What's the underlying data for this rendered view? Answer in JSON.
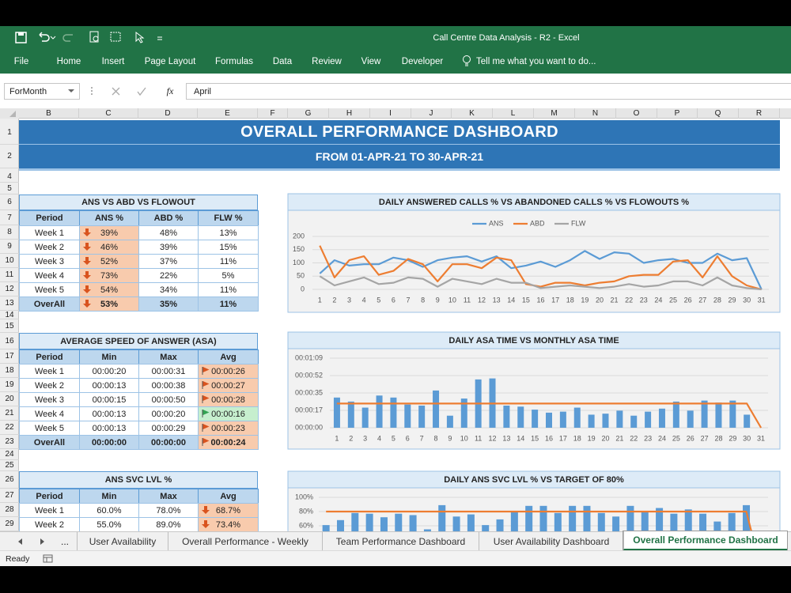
{
  "window": {
    "title": "Call Centre Data Analysis - R2 - Excel"
  },
  "menu": [
    "File",
    "Home",
    "Insert",
    "Page Layout",
    "Formulas",
    "Data",
    "Review",
    "View",
    "Developer"
  ],
  "tell_me": "Tell me what you want to do...",
  "formula_bar": {
    "name_box": "ForMonth",
    "fx": "fx",
    "value": "April"
  },
  "column_headers": [
    "B",
    "C",
    "D",
    "E",
    "F",
    "G",
    "H",
    "I",
    "J",
    "K",
    "L",
    "M",
    "N",
    "O",
    "P",
    "Q",
    "R"
  ],
  "row_headers": [
    1,
    2,
    4,
    5,
    6,
    7,
    8,
    9,
    10,
    11,
    12,
    13,
    14,
    15,
    16,
    17,
    18,
    19,
    20,
    21,
    22,
    23,
    24,
    25,
    26,
    27,
    28,
    29
  ],
  "dashboard": {
    "title": "OVERALL PERFORMANCE DASHBOARD",
    "subtitle": "FROM 01-APR-21 TO 30-APR-21"
  },
  "tables": [
    {
      "title": "ANS VS ABD VS FLOWOUT",
      "header": [
        "Period",
        "ANS %",
        "ABD %",
        "FLW %"
      ],
      "rows": [
        [
          "Week 1",
          "39%",
          "48%",
          "13%"
        ],
        [
          "Week 2",
          "46%",
          "39%",
          "15%"
        ],
        [
          "Week 3",
          "52%",
          "37%",
          "11%"
        ],
        [
          "Week 4",
          "73%",
          "22%",
          "5%"
        ],
        [
          "Week 5",
          "54%",
          "34%",
          "11%"
        ],
        [
          "OverAll",
          "53%",
          "35%",
          "11%"
        ]
      ]
    },
    {
      "title": "AVERAGE SPEED OF ANSWER (ASA)",
      "header": [
        "Period",
        "Min",
        "Max",
        "Avg"
      ],
      "rows": [
        [
          "Week 1",
          "00:00:20",
          "00:00:31",
          "00:00:26"
        ],
        [
          "Week 2",
          "00:00:13",
          "00:00:38",
          "00:00:27"
        ],
        [
          "Week 3",
          "00:00:15",
          "00:00:50",
          "00:00:28"
        ],
        [
          "Week 4",
          "00:00:13",
          "00:00:20",
          "00:00:16"
        ],
        [
          "Week 5",
          "00:00:13",
          "00:00:29",
          "00:00:23"
        ],
        [
          "OverAll",
          "00:00:00",
          "00:00:00",
          "00:00:24"
        ]
      ]
    },
    {
      "title": "ANS SVC LVL %",
      "header": [
        "Period",
        "Min",
        "Max",
        "Avg"
      ],
      "rows": [
        [
          "Week 1",
          "60.0%",
          "78.0%",
          "68.7%"
        ],
        [
          "Week 2",
          "55.0%",
          "89.0%",
          "73.4%"
        ]
      ]
    }
  ],
  "chart_data": [
    {
      "type": "line",
      "title": "DAILY ANSWERED CALLS % VS ABANDONED CALLS % VS FLOWOUTS %",
      "categories": [
        1,
        2,
        3,
        4,
        5,
        6,
        7,
        8,
        9,
        10,
        11,
        12,
        13,
        14,
        15,
        16,
        17,
        18,
        19,
        20,
        21,
        22,
        23,
        24,
        25,
        26,
        27,
        28,
        29,
        30,
        31
      ],
      "series": [
        {
          "name": "ANS",
          "color": "#5b9bd5",
          "values": [
            60,
            110,
            90,
            95,
            95,
            120,
            110,
            85,
            110,
            120,
            125,
            105,
            125,
            80,
            90,
            105,
            85,
            110,
            145,
            115,
            140,
            135,
            100,
            110,
            115,
            100,
            100,
            135,
            110,
            118,
            0
          ]
        },
        {
          "name": "ABD",
          "color": "#ed7d31",
          "values": [
            165,
            45,
            110,
            125,
            55,
            70,
            115,
            95,
            30,
            95,
            95,
            80,
            120,
            110,
            20,
            10,
            25,
            25,
            15,
            25,
            30,
            50,
            55,
            55,
            105,
            110,
            45,
            125,
            50,
            15,
            0
          ]
        },
        {
          "name": "FLW",
          "color": "#a5a5a5",
          "values": [
            50,
            15,
            30,
            45,
            20,
            25,
            45,
            40,
            10,
            40,
            30,
            20,
            40,
            25,
            25,
            5,
            10,
            15,
            10,
            5,
            10,
            20,
            10,
            15,
            30,
            30,
            15,
            45,
            15,
            5,
            0
          ]
        }
      ],
      "ylim": [
        0,
        200
      ],
      "yticks": [
        0,
        50,
        100,
        150,
        200
      ],
      "grid": true,
      "legend": "top"
    },
    {
      "type": "bar",
      "title": "DAILY ASA TIME VS MONTHLY ASA TIME",
      "categories": [
        1,
        2,
        3,
        4,
        5,
        6,
        7,
        8,
        9,
        10,
        11,
        12,
        13,
        14,
        15,
        16,
        17,
        18,
        19,
        20,
        21,
        22,
        23,
        24,
        25,
        26,
        27,
        28,
        29,
        30,
        31
      ],
      "series": [
        {
          "type": "bar",
          "color": "#5b9bd5",
          "values": [
            30,
            26,
            20,
            32,
            30,
            23,
            22,
            37,
            12,
            29,
            48,
            49,
            22,
            21,
            18,
            15,
            16,
            20,
            13,
            14,
            17,
            12,
            16,
            19,
            26,
            17,
            27,
            25,
            27,
            13,
            0
          ]
        },
        {
          "type": "line",
          "color": "#ed7d31",
          "values": [
            24,
            24,
            24,
            24,
            24,
            24,
            24,
            24,
            24,
            24,
            24,
            24,
            24,
            24,
            24,
            24,
            24,
            24,
            24,
            24,
            24,
            24,
            24,
            24,
            24,
            24,
            24,
            24,
            24,
            24,
            0
          ]
        }
      ],
      "ylim": [
        0,
        69.12
      ],
      "yticks": [
        {
          "value": 0,
          "label": "00:00:00"
        },
        {
          "value": 17.28,
          "label": "00:00:17"
        },
        {
          "value": 34.56,
          "label": "00:00:35"
        },
        {
          "value": 51.84,
          "label": "00:00:52"
        },
        {
          "value": 69.12,
          "label": "00:01:09"
        }
      ],
      "grid": true
    },
    {
      "type": "bar",
      "title": "DAILY ANS SVC LVL % VS TARGET OF 80%",
      "series": [
        {
          "type": "bar",
          "color": "#5b9bd5",
          "values": [
            61,
            68,
            78,
            77,
            72,
            77,
            75,
            55,
            89,
            73,
            76,
            61,
            69,
            80,
            88,
            88,
            78,
            88,
            88,
            78,
            73,
            88,
            81,
            85,
            77,
            83,
            77,
            66,
            78,
            89,
            0
          ]
        },
        {
          "type": "line",
          "color": "#ed7d31",
          "values": [
            80,
            80,
            80,
            80,
            80,
            80,
            80,
            80,
            80,
            80,
            80,
            80,
            80,
            80,
            80,
            80,
            80,
            80,
            80,
            80,
            80,
            80,
            80,
            80,
            80,
            80,
            80,
            80,
            80,
            80,
            0
          ]
        }
      ],
      "ylim": [
        0,
        100
      ],
      "yticks": [
        {
          "value": 60,
          "label": "60%"
        },
        {
          "value": 80,
          "label": "80%"
        },
        {
          "value": 100,
          "label": "100%"
        }
      ],
      "grid": true
    }
  ],
  "sheet_tabs": {
    "more": "...",
    "tabs": [
      "User Availability",
      "Overall Performance - Weekly",
      "Team Performance Dashboard",
      "User Availability Dashboard",
      "Overall Performance Dashboard"
    ],
    "active": 4
  },
  "status": "Ready"
}
